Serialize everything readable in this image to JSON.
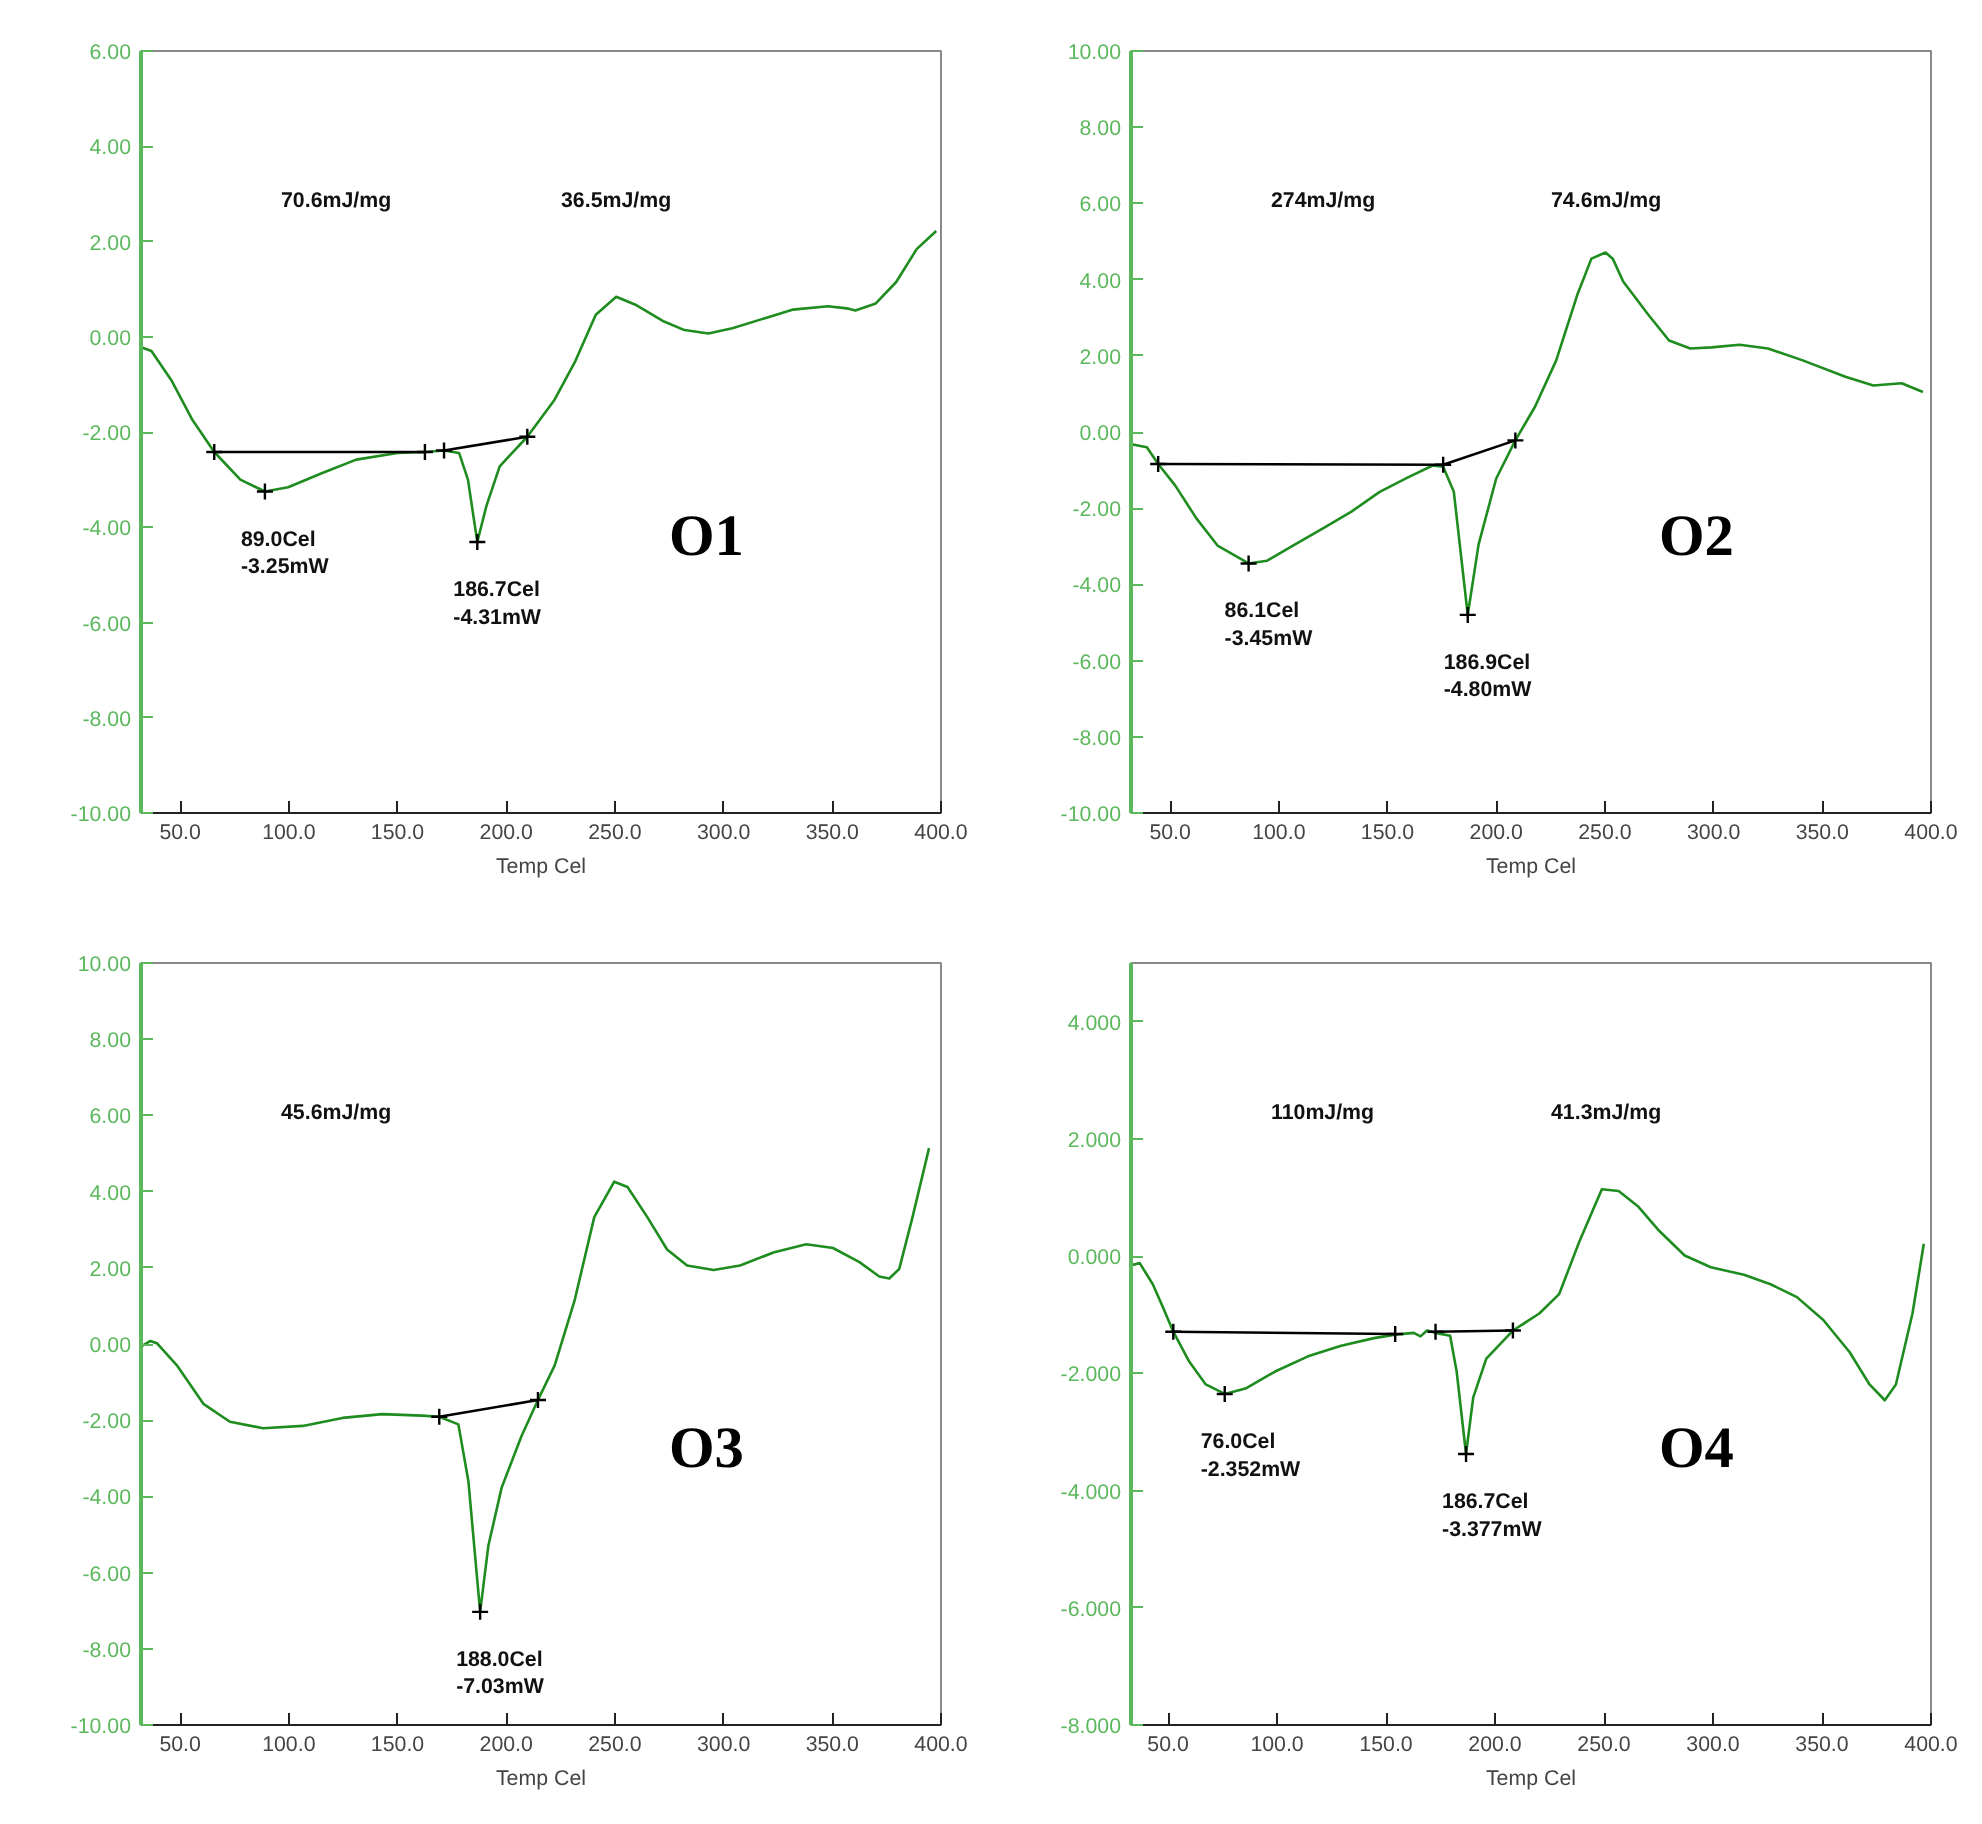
{
  "chart_data": [
    {
      "type": "line",
      "title": "O1",
      "xlabel": "Temp Cel",
      "xlim": [
        32,
        400
      ],
      "ylim": [
        -10,
        6
      ],
      "xticks": [
        {
          "value": 50,
          "label": "50.0"
        },
        {
          "value": 100,
          "label": "100.0"
        },
        {
          "value": 150,
          "label": "150.0"
        },
        {
          "value": 200,
          "label": "200.0"
        },
        {
          "value": 250,
          "label": "250.0"
        },
        {
          "value": 300,
          "label": "300.0"
        },
        {
          "value": 350,
          "label": "350.0"
        },
        {
          "value": 400,
          "label": "400.0"
        }
      ],
      "yticks": [
        {
          "value": -10,
          "label": "-10.00"
        },
        {
          "value": -8,
          "label": "-8.00"
        },
        {
          "value": -6,
          "label": "-6.00"
        },
        {
          "value": -4,
          "label": "-4.00"
        },
        {
          "value": -2,
          "label": "-2.00"
        },
        {
          "value": 0,
          "label": "0.00"
        },
        {
          "value": 2,
          "label": "2.00"
        },
        {
          "value": 4,
          "label": "4.00"
        },
        {
          "value": 6,
          "label": "6.00"
        }
      ],
      "grid": false,
      "series": [
        {
          "color": "#1e8c1e",
          "x": [
            32.7,
            36.8,
            46.2,
            55.7,
            65.7,
            77.7,
            89.0,
            99.7,
            115.4,
            131,
            150,
            162.6,
            171.4,
            178.3,
            182.4,
            186.7,
            190.9,
            197,
            209.7,
            222,
            231.8,
            241.2,
            250.6,
            260,
            272.6,
            282,
            293,
            304,
            319.8,
            332,
            348,
            357.5,
            360.6,
            370,
            379.4,
            388.8,
            397.8
          ],
          "values": [
            -0.23,
            -0.3,
            -0.93,
            -1.75,
            -2.42,
            -3.0,
            -3.25,
            -3.16,
            -2.86,
            -2.58,
            -2.44,
            -2.42,
            -2.39,
            -2.44,
            -3.0,
            -4.31,
            -3.55,
            -2.72,
            -2.1,
            -1.34,
            -0.51,
            0.46,
            0.84,
            0.66,
            0.32,
            0.14,
            0.07,
            0.18,
            0.4,
            0.57,
            0.64,
            0.59,
            0.55,
            0.7,
            1.15,
            1.84,
            2.22
          ]
        },
        {
          "type": "line",
          "color": "#000000",
          "marker": "cross",
          "x": [
            65.7,
            162.6
          ],
          "values": [
            -2.42,
            -2.42
          ]
        },
        {
          "type": "line",
          "color": "#000000",
          "marker": "cross",
          "x": [
            171.4,
            209.7
          ],
          "values": [
            -2.39,
            -2.1
          ]
        },
        {
          "type": "scatter",
          "color": "#000000",
          "marker": "cross",
          "x": [
            89.0,
            186.7
          ],
          "values": [
            -3.25,
            -4.31
          ]
        }
      ],
      "annotations": [
        "70.6mJ/mg",
        "36.5mJ/mg",
        {
          "text": "89.0Cel\n-3.25mW",
          "x": 89.0,
          "y": -3.25
        },
        {
          "text": "186.7Cel\n-4.31mW",
          "x": 186.7,
          "y": -4.31
        }
      ]
    },
    {
      "type": "line",
      "title": "O2",
      "xlabel": "Temp Cel",
      "xlim": [
        32,
        400
      ],
      "ylim": [
        -10,
        10
      ],
      "xticks": [
        {
          "value": 50,
          "label": "50.0"
        },
        {
          "value": 100,
          "label": "100.0"
        },
        {
          "value": 150,
          "label": "150.0"
        },
        {
          "value": 200,
          "label": "200.0"
        },
        {
          "value": 250,
          "label": "250.0"
        },
        {
          "value": 300,
          "label": "300.0"
        },
        {
          "value": 350,
          "label": "350.0"
        },
        {
          "value": 400,
          "label": "400.0"
        }
      ],
      "yticks": [
        {
          "value": -10,
          "label": "-10.00"
        },
        {
          "value": -8,
          "label": "-8.00"
        },
        {
          "value": -6,
          "label": "-6.00"
        },
        {
          "value": -4,
          "label": "-4.00"
        },
        {
          "value": -2,
          "label": "-2.00"
        },
        {
          "value": 0,
          "label": "0.00"
        },
        {
          "value": 2,
          "label": "2.00"
        },
        {
          "value": 4,
          "label": "4.00"
        },
        {
          "value": 6,
          "label": "6.00"
        },
        {
          "value": 8,
          "label": "8.00"
        },
        {
          "value": 10,
          "label": "10.00"
        }
      ],
      "grid": false,
      "series": [
        {
          "color": "#1e8c1e",
          "x": [
            32.8,
            39.3,
            44.5,
            52.3,
            62,
            71.8,
            86.1,
            94.5,
            107.5,
            120.5,
            133.4,
            146.4,
            159.4,
            170.8,
            175.6,
            180.5,
            186.9,
            191.9,
            200,
            208.8,
            217.9,
            227.6,
            237.3,
            243.8,
            250.3,
            253.6,
            258.4,
            269.8,
            279.5,
            289.3,
            299,
            312,
            325,
            341,
            360.6,
            373.5,
            386.5,
            396.3
          ],
          "values": [
            -0.33,
            -0.4,
            -0.84,
            -1.4,
            -2.26,
            -2.98,
            -3.45,
            -3.38,
            -2.95,
            -2.52,
            -2.09,
            -1.57,
            -1.19,
            -0.88,
            -0.91,
            -1.57,
            -4.8,
            -2.95,
            -1.22,
            -0.22,
            0.67,
            1.88,
            3.6,
            4.55,
            4.71,
            4.55,
            3.95,
            3.09,
            2.4,
            2.19,
            2.22,
            2.29,
            2.19,
            1.88,
            1.45,
            1.22,
            1.28,
            1.05
          ]
        },
        {
          "type": "line",
          "color": "#000000",
          "marker": "cross",
          "x": [
            44.5,
            175.6,
            208.8
          ],
          "values": [
            -0.84,
            -0.86,
            -0.22
          ]
        },
        {
          "type": "scatter",
          "color": "#000000",
          "marker": "cross",
          "x": [
            86.1,
            186.9
          ],
          "values": [
            -3.45,
            -4.8
          ]
        }
      ],
      "annotations": [
        "274mJ/mg",
        "74.6mJ/mg",
        {
          "text": "86.1Cel\n-3.45mW",
          "x": 86.1,
          "y": -3.45
        },
        {
          "text": "186.9Cel\n-4.80mW",
          "x": 186.9,
          "y": -4.8
        }
      ]
    },
    {
      "type": "line",
      "title": "O3",
      "xlabel": "Temp Cel",
      "xlim": [
        32,
        400
      ],
      "ylim": [
        -10,
        10
      ],
      "xticks": [
        {
          "value": 50,
          "label": "50.0"
        },
        {
          "value": 100,
          "label": "100.0"
        },
        {
          "value": 150,
          "label": "150.0"
        },
        {
          "value": 200,
          "label": "200.0"
        },
        {
          "value": 250,
          "label": "250.0"
        },
        {
          "value": 300,
          "label": "300.0"
        },
        {
          "value": 350,
          "label": "350.0"
        },
        {
          "value": 400,
          "label": "400.0"
        }
      ],
      "yticks": [
        {
          "value": -10,
          "label": "-10.00"
        },
        {
          "value": -8,
          "label": "-8.00"
        },
        {
          "value": -6,
          "label": "-6.00"
        },
        {
          "value": -4,
          "label": "-4.00"
        },
        {
          "value": -2,
          "label": "-2.00"
        },
        {
          "value": 0,
          "label": "0.00"
        },
        {
          "value": 2,
          "label": "2.00"
        },
        {
          "value": 4,
          "label": "4.00"
        },
        {
          "value": 6,
          "label": "6.00"
        },
        {
          "value": 8,
          "label": "8.00"
        },
        {
          "value": 10,
          "label": "10.00"
        }
      ],
      "grid": false,
      "series": [
        {
          "color": "#1e8c1e",
          "x": [
            32.6,
            36.3,
            39.3,
            48.5,
            60.7,
            72.9,
            88.1,
            106.4,
            124.7,
            143,
            161.3,
            169.2,
            178,
            182.6,
            188.0,
            191.8,
            197.9,
            207,
            214.6,
            222.3,
            231.4,
            240.5,
            249.7,
            255.8,
            264.9,
            274,
            283.2,
            295.4,
            307.6,
            322.9,
            338,
            350.3,
            362.5,
            371.6,
            376.2,
            380.8,
            386.9,
            394.5
          ],
          "values": [
            -0.05,
            0.08,
            0.02,
            -0.56,
            -1.57,
            -2.04,
            -2.21,
            -2.15,
            -1.94,
            -1.84,
            -1.88,
            -1.91,
            -2.11,
            -3.6,
            -7.03,
            -5.29,
            -3.77,
            -2.42,
            -1.47,
            -0.56,
            1.13,
            3.33,
            4.26,
            4.12,
            3.33,
            2.48,
            2.06,
            1.94,
            2.06,
            2.4,
            2.62,
            2.52,
            2.15,
            1.77,
            1.72,
            1.97,
            3.33,
            5.14
          ]
        },
        {
          "type": "line",
          "color": "#000000",
          "marker": "cross",
          "x": [
            169.2,
            214.6
          ],
          "values": [
            -1.91,
            -1.47
          ]
        },
        {
          "type": "scatter",
          "color": "#000000",
          "marker": "cross",
          "x": [
            188.0
          ],
          "values": [
            -7.03
          ]
        }
      ],
      "annotations": [
        "45.6mJ/mg",
        {
          "text": "188.0Cel\n-7.03mW",
          "x": 188.0,
          "y": -7.03
        }
      ]
    },
    {
      "type": "line",
      "title": "O4",
      "xlabel": "Temp Cel",
      "xlim": [
        33,
        400
      ],
      "ylim": [
        -8,
        5
      ],
      "xticks": [
        {
          "value": 50,
          "label": "50.0"
        },
        {
          "value": 100,
          "label": "100.0"
        },
        {
          "value": 150,
          "label": "150.0"
        },
        {
          "value": 200,
          "label": "200.0"
        },
        {
          "value": 250,
          "label": "250.0"
        },
        {
          "value": 300,
          "label": "300.0"
        },
        {
          "value": 350,
          "label": "350.0"
        },
        {
          "value": 400,
          "label": "400.0"
        }
      ],
      "yticks": [
        {
          "value": -8,
          "label": "-8.000"
        },
        {
          "value": -6,
          "label": "-6.000"
        },
        {
          "value": -4,
          "label": "-4.000"
        },
        {
          "value": -2,
          "label": "-2.000"
        },
        {
          "value": 0,
          "label": "0.000"
        },
        {
          "value": 2,
          "label": "2.000"
        },
        {
          "value": 4,
          "label": "4.000"
        }
      ],
      "grid": false,
      "series": [
        {
          "color": "#1e8c1e",
          "x": [
            33.9,
            37,
            43,
            47.6,
            52.4,
            59.7,
            67.3,
            76.0,
            85.5,
            99.1,
            114.2,
            129.4,
            144.5,
            154.2,
            162.7,
            165.8,
            168.8,
            172.7,
            179.4,
            182.4,
            186.7,
            190,
            196,
            208.2,
            220.3,
            229.4,
            238.5,
            249,
            256.7,
            265.8,
            274.8,
            287,
            299,
            314.2,
            326.4,
            338.5,
            350.6,
            362.7,
            371.8,
            378.8,
            383.9,
            391.5,
            396.7
          ],
          "values": [
            -0.15,
            -0.12,
            -0.48,
            -0.87,
            -1.29,
            -1.8,
            -2.19,
            -2.352,
            -2.26,
            -1.97,
            -1.71,
            -1.53,
            -1.4,
            -1.34,
            -1.31,
            -1.37,
            -1.27,
            -1.31,
            -1.36,
            -1.97,
            -3.377,
            -2.41,
            -1.75,
            -1.27,
            -0.98,
            -0.65,
            0.23,
            1.14,
            1.11,
            0.84,
            0.45,
            0.01,
            -0.19,
            -0.32,
            -0.48,
            -0.7,
            -1.09,
            -1.64,
            -2.19,
            -2.46,
            -2.19,
            -0.98,
            0.21
          ]
        },
        {
          "type": "line",
          "color": "#000000",
          "marker": "cross",
          "x": [
            52.4,
            154.2
          ],
          "values": [
            -1.29,
            -1.33
          ]
        },
        {
          "type": "line",
          "color": "#000000",
          "marker": "cross",
          "x": [
            172.7,
            208.2
          ],
          "values": [
            -1.29,
            -1.27
          ]
        },
        {
          "type": "scatter",
          "color": "#000000",
          "marker": "cross",
          "x": [
            76.0,
            186.7
          ],
          "values": [
            -2.352,
            -3.377
          ]
        }
      ],
      "annotations": [
        "110mJ/mg",
        "41.3mJ/mg",
        {
          "text": "76.0Cel\n-2.352mW",
          "x": 76.0,
          "y": -2.352
        },
        {
          "text": "186.7Cel\n-3.377mW",
          "x": 186.7,
          "y": -3.377
        }
      ]
    }
  ]
}
